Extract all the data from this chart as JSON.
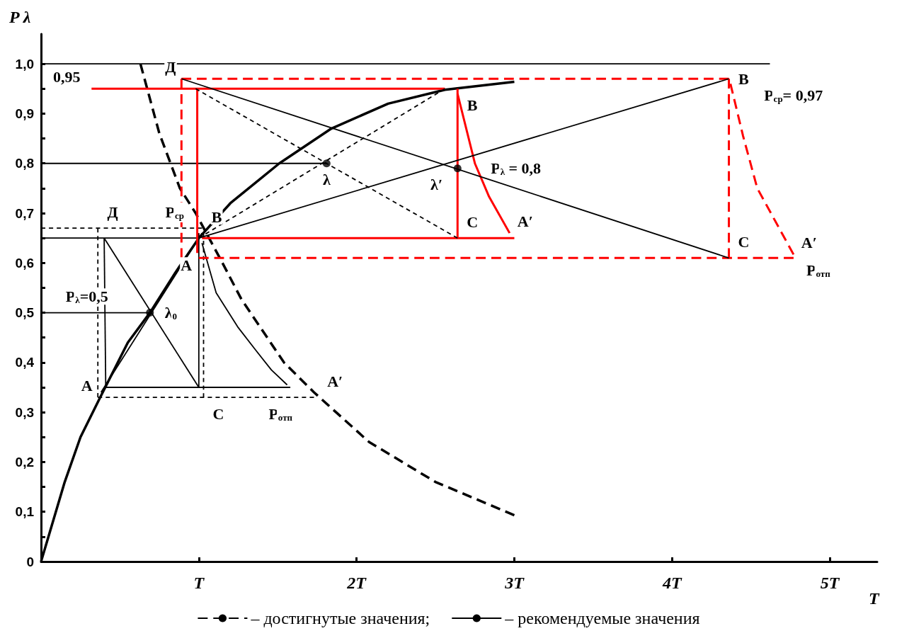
{
  "chart_data": {
    "type": "line",
    "xlabel": "T",
    "ylabel": "P λ",
    "xlim": [
      0,
      5.3
    ],
    "ylim": [
      0,
      1.06
    ],
    "xticks": [
      {
        "value": 1,
        "label": "T"
      },
      {
        "value": 2,
        "label": "2T"
      },
      {
        "value": 3,
        "label": "3T"
      },
      {
        "value": 4,
        "label": "4T"
      },
      {
        "value": 5,
        "label": "5T"
      }
    ],
    "yticks": [
      0,
      {
        "value": 0.05,
        "label": null
      },
      {
        "value": 0.1,
        "label": "0,1"
      },
      {
        "value": 0.15,
        "label": null
      },
      {
        "value": 0.2,
        "label": "0,2"
      },
      {
        "value": 0.25,
        "label": null
      },
      {
        "value": 0.3,
        "label": "0,3"
      },
      {
        "value": 0.35,
        "label": null
      },
      {
        "value": 0.4,
        "label": "0,4"
      },
      {
        "value": 0.45,
        "label": null
      },
      {
        "value": 0.5,
        "label": "0,5"
      },
      {
        "value": 0.55,
        "label": null
      },
      {
        "value": 0.6,
        "label": "0,6"
      },
      {
        "value": 0.65,
        "label": null
      },
      {
        "value": 0.7,
        "label": "0,7"
      },
      {
        "value": 0.75,
        "label": null
      },
      {
        "value": 0.8,
        "label": "0,8"
      },
      {
        "value": 0.85,
        "label": null
      },
      {
        "value": 0.9,
        "label": "0,9"
      },
      {
        "value": 0.95,
        "label": null
      },
      {
        "value": 1.0,
        "label": "1,0"
      }
    ],
    "grid": false,
    "legend": "bottom",
    "marker": "none",
    "series": [
      {
        "name": "– достигнутые значения;",
        "color": "#000000",
        "line_style": "dashed",
        "x": [
          0.63,
          0.75,
          0.88,
          0.98,
          1.15,
          1.27,
          1.54,
          1.73,
          2.08,
          2.5,
          3.0
        ],
        "values": [
          1.0,
          0.86,
          0.75,
          0.7,
          0.6,
          0.527,
          0.4,
          0.34,
          0.24,
          0.16,
          0.093
        ]
      },
      {
        "name": "– рекомендуемые значения",
        "color": "#000000",
        "line_style": "solid",
        "x": [
          0,
          0.15,
          0.25,
          0.375,
          0.55,
          0.69,
          0.85,
          1.0,
          1.2,
          1.51,
          1.84,
          2.2,
          2.56,
          3.0
        ],
        "values": [
          0,
          0.16,
          0.25,
          0.33,
          0.44,
          0.5,
          0.58,
          0.65,
          0.72,
          0.8,
          0.87,
          0.92,
          0.948,
          0.964
        ]
      },
      {
        "color": "#000000",
        "line_style": "solid",
        "x": [
          0,
          4.62
        ],
        "values": [
          1.0,
          1.0
        ]
      },
      {
        "color": "#000000",
        "line_style": "solid",
        "x": [
          0,
          1.81
        ],
        "values": [
          0.8,
          0.8
        ]
      },
      {
        "color": "#000000",
        "line_style": "solid",
        "x": [
          0,
          0.69
        ],
        "values": [
          0.5,
          0.5
        ]
      },
      {
        "color": "#000000",
        "line_style": "solid",
        "x": [
          0.41,
          0.4
        ],
        "values": [
          0.35,
          0.65
        ]
      },
      {
        "color": "#000000",
        "line_style": "solid",
        "x": [
          0,
          0.99
        ],
        "values": [
          0.65,
          0.65
        ]
      },
      {
        "color": "#000000",
        "line_style": "solid",
        "x": [
          1.0,
          1.0
        ],
        "values": [
          0.66,
          0.35
        ]
      },
      {
        "color": "#000000",
        "line_style": "solid",
        "x": [
          1.02,
          1.11,
          1.25,
          1.36,
          1.46,
          1.56
        ],
        "values": [
          0.64,
          0.54,
          0.47,
          0.425,
          0.385,
          0.355
        ]
      },
      {
        "color": "#000000",
        "line_style": "solid",
        "x": [
          1.58,
          0.41
        ],
        "values": [
          0.35,
          0.35
        ]
      },
      {
        "color": "#000000",
        "line_style": "dashed",
        "x": [
          0,
          1.02
        ],
        "values": [
          0.67,
          0.67
        ]
      },
      {
        "color": "#000000",
        "line_style": "dashed",
        "x": [
          0.36,
          0.36
        ],
        "values": [
          0.33,
          0.67
        ]
      },
      {
        "color": "#000000",
        "line_style": "dashed",
        "x": [
          1.03,
          1.03
        ],
        "values": [
          0.66,
          0.33
        ]
      },
      {
        "color": "#000000",
        "line_style": "dashed",
        "x": [
          1.73,
          0.36
        ],
        "values": [
          0.33,
          0.33
        ]
      },
      {
        "color": "#000000",
        "line_style": "solid",
        "x": [
          0.4,
          1.0
        ],
        "values": [
          0.65,
          0.35
        ]
      },
      {
        "color": "#000000",
        "line_style": "solid",
        "x": [
          0.38,
          1.02
        ],
        "values": [
          0.34,
          0.66
        ]
      },
      {
        "color": "#ff0000",
        "line_style": "solid",
        "x": [
          0.32,
          2.56
        ],
        "values": [
          0.95,
          0.95
        ]
      },
      {
        "color": "#ff0000",
        "line_style": "solid",
        "x": [
          0.99,
          0.99
        ],
        "values": [
          0.62,
          0.95
        ]
      },
      {
        "color": "#ff0000",
        "line_style": "solid",
        "x": [
          2.64,
          2.64
        ],
        "values": [
          0.95,
          0.65
        ]
      },
      {
        "color": "#ff0000",
        "line_style": "solid",
        "x": [
          2.64,
          2.75,
          2.84,
          2.97
        ],
        "values": [
          0.94,
          0.8,
          0.733,
          0.66
        ]
      },
      {
        "color": "#ff0000",
        "line_style": "solid",
        "x": [
          3.0,
          1.02
        ],
        "values": [
          0.65,
          0.65
        ]
      },
      {
        "color": "#ff0000",
        "line_style": "dashed",
        "x": [
          0.89,
          4.36
        ],
        "values": [
          0.97,
          0.97
        ]
      },
      {
        "color": "#ff0000",
        "line_style": "dashed",
        "x": [
          0.89,
          0.89
        ],
        "values": [
          0.61,
          0.97
        ]
      },
      {
        "color": "#ff0000",
        "line_style": "dashed",
        "x": [
          4.36,
          4.36
        ],
        "values": [
          0.97,
          0.61
        ]
      },
      {
        "color": "#ff0000",
        "line_style": "dashed",
        "x": [
          4.37,
          4.45,
          4.54,
          4.77
        ],
        "values": [
          0.96,
          0.855,
          0.75,
          0.617
        ]
      },
      {
        "color": "#ff0000",
        "line_style": "dashed",
        "x": [
          4.77,
          1.0
        ],
        "values": [
          0.61,
          0.61
        ]
      },
      {
        "color": "#000000",
        "line_style": "solid",
        "x": [
          0.89,
          4.36
        ],
        "values": [
          0.97,
          0.61
        ]
      },
      {
        "color": "#000000",
        "line_style": "solid",
        "x": [
          1.0,
          4.36
        ],
        "values": [
          0.65,
          0.97
        ]
      },
      {
        "color": "#000000",
        "line_style": "dashed",
        "x": [
          0.98,
          2.64
        ],
        "values": [
          0.95,
          0.65
        ]
      },
      {
        "color": "#000000",
        "line_style": "dashed",
        "x": [
          1.0,
          2.56
        ],
        "values": [
          0.65,
          0.95
        ]
      },
      {
        "type": "scatter",
        "marker": "circle",
        "color": "#000000",
        "x": [
          0.69,
          1.81,
          2.64
        ],
        "values": [
          0.5,
          0.8,
          0.79
        ]
      }
    ],
    "annotations": [
      {
        "text": "Д",
        "x": 0.89,
        "y": 0.97
      },
      {
        "text": "Д",
        "x": 0.36,
        "y": 0.67
      },
      {
        "text": "P$_{ср}$",
        "x": 1.02,
        "y": 0.67
      },
      {
        "text": "В",
        "x": 1.02,
        "y": 0.66
      },
      {
        "text": "А",
        "x": 0.99,
        "y": 0.62
      },
      {
        "text": "P$_{λ}$=0,5",
        "x": 0,
        "y": 0.5
      },
      {
        "text": "λ$_{0}$",
        "x": 0.69,
        "y": 0.5
      },
      {
        "text": "А",
        "x": 0.36,
        "y": 0.33
      },
      {
        "text": "С",
        "x": 1.03,
        "y": 0.33
      },
      {
        "text": "А′",
        "x": 1.73,
        "y": 0.33
      },
      {
        "text": "P$_{отп}$",
        "x": 1.73,
        "y": 0.33
      },
      {
        "text": "λ",
        "x": 1.81,
        "y": 0.8
      },
      {
        "text": "0,95",
        "x": 0.32,
        "y": 0.95
      },
      {
        "text": "В",
        "x": 2.64,
        "y": 0.95
      },
      {
        "text": "λ′",
        "x": 2.64,
        "y": 0.79
      },
      {
        "text": "P$_{λ}$ = 0,8",
        "x": 2.64,
        "y": 0.79
      },
      {
        "text": "С",
        "x": 2.64,
        "y": 0.65
      },
      {
        "text": "А′",
        "x": 2.97,
        "y": 0.66
      },
      {
        "text": "В",
        "x": 4.36,
        "y": 0.97
      },
      {
        "text": "P$_{ср}$= 0,97",
        "x": 4.36,
        "y": 0.97
      },
      {
        "text": "С",
        "x": 4.36,
        "y": 0.61
      },
      {
        "text": "А′",
        "x": 4.77,
        "y": 0.617
      },
      {
        "text": "P$_{отп}$",
        "x": 4.77,
        "y": 0.61
      }
    ]
  }
}
